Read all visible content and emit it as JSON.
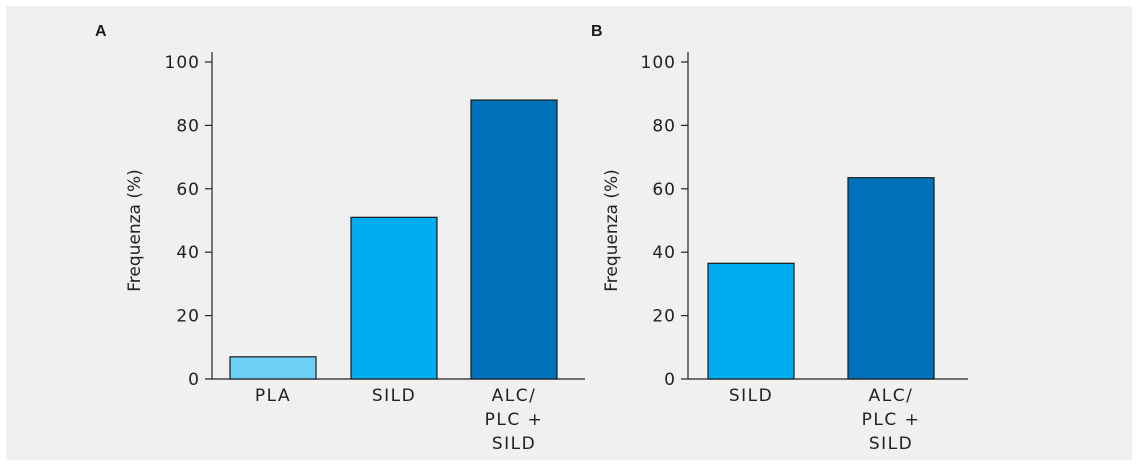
{
  "chart_data": [
    {
      "type": "bar",
      "panel_label": "A",
      "categories": [
        [
          "PLA"
        ],
        [
          "SILD"
        ],
        [
          "ALC/",
          "PLC +",
          "SILD"
        ]
      ],
      "values": [
        7,
        51,
        88
      ],
      "colors": [
        "#6ecff6",
        "#00aeef",
        "#0072bc"
      ],
      "ylabel": "Frequenza (%)",
      "ylim": [
        0,
        100
      ],
      "yticks": [
        0,
        20,
        40,
        60,
        80,
        100
      ],
      "grid": false
    },
    {
      "type": "bar",
      "panel_label": "B",
      "categories": [
        [
          "SILD"
        ],
        [
          "ALC/",
          "PLC +",
          "SILD"
        ]
      ],
      "values": [
        36.5,
        63.5
      ],
      "colors": [
        "#00aeef",
        "#0072bc"
      ],
      "ylabel": "Frequenza (%)",
      "ylim": [
        0,
        100
      ],
      "yticks": [
        0,
        20,
        40,
        60,
        80,
        100
      ],
      "grid": false
    }
  ]
}
